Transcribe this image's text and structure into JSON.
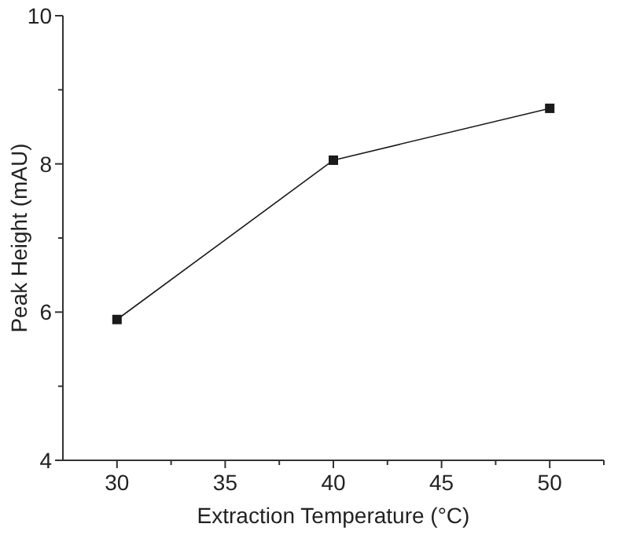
{
  "chart_data": {
    "type": "line",
    "xlabel": "Extraction Temperature (°C)",
    "ylabel": "Peak Height (mAU)",
    "x": [
      30,
      40,
      50
    ],
    "series": [
      {
        "color": "#1a1a1a",
        "values": [
          5.9,
          8.05,
          8.75
        ]
      }
    ],
    "xlim": [
      27.5,
      52.5
    ],
    "ylim": [
      4,
      10
    ],
    "xticks": [
      30,
      {
        "value": 32.5,
        "label": null
      },
      35,
      {
        "value": 37.5,
        "label": null
      },
      40,
      {
        "value": 42.5,
        "label": null
      },
      45,
      {
        "value": 47.5,
        "label": null
      },
      50,
      {
        "value": 52.5,
        "label": null
      }
    ],
    "yticks": [
      4,
      {
        "value": 5,
        "label": null
      },
      6,
      {
        "value": 7,
        "label": null
      },
      8,
      {
        "value": 9,
        "label": null
      },
      10
    ],
    "marker": "square",
    "line_style": "solid"
  }
}
